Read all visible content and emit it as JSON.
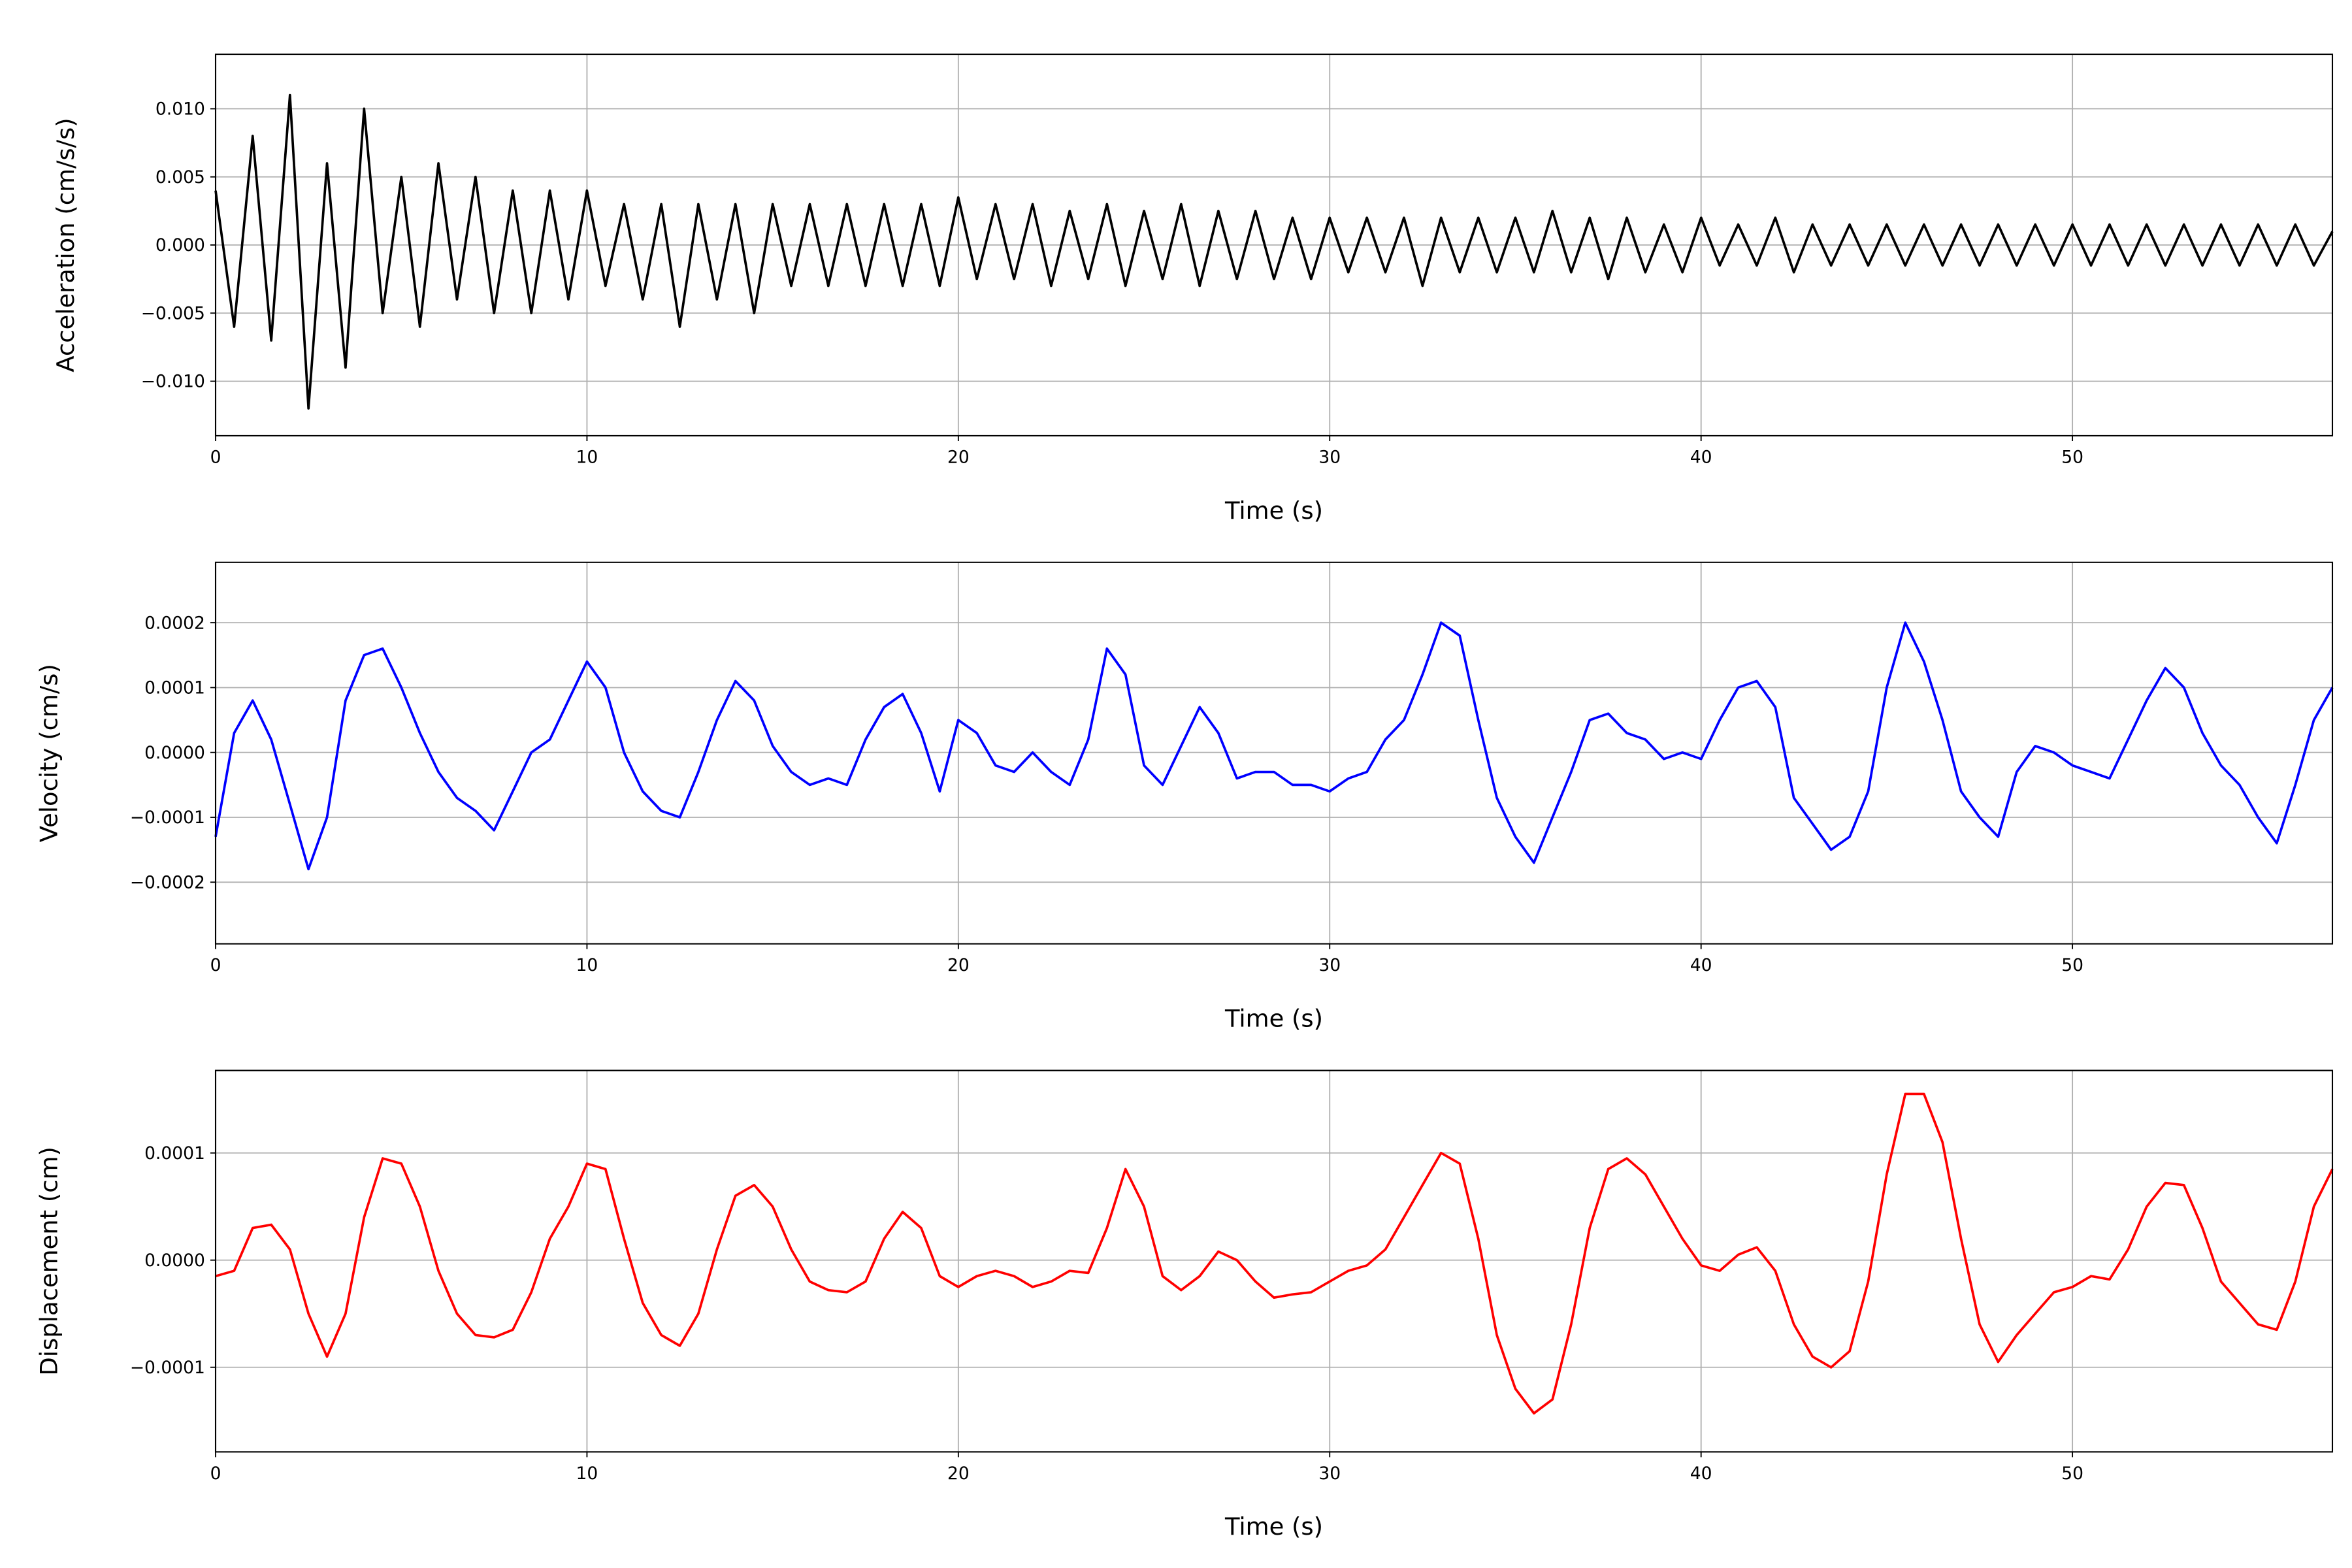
{
  "chart_data": [
    {
      "type": "line",
      "xlabel": "Time (s)",
      "ylabel": "Acceleration (cm/s/s)",
      "color": "#000000",
      "grid": true,
      "xlim": [
        0,
        57
      ],
      "ylim": [
        -0.014,
        0.014
      ],
      "xticks": [
        0,
        10,
        20,
        30,
        40,
        50
      ],
      "yticks": [
        -0.01,
        -0.005,
        0.0,
        0.005,
        0.01
      ],
      "ytick_labels": [
        "−0.010",
        "−0.005",
        "0.000",
        "0.005",
        "0.010"
      ],
      "x_start": 0,
      "x_step": 0.5,
      "y": [
        0.004,
        -0.006,
        0.008,
        -0.007,
        0.011,
        -0.012,
        0.006,
        -0.009,
        0.01,
        -0.005,
        0.005,
        -0.006,
        0.006,
        -0.004,
        0.005,
        -0.005,
        0.004,
        -0.005,
        0.004,
        -0.004,
        0.004,
        -0.003,
        0.003,
        -0.004,
        0.003,
        -0.006,
        0.003,
        -0.004,
        0.003,
        -0.005,
        0.003,
        -0.003,
        0.003,
        -0.003,
        0.003,
        -0.003,
        0.003,
        -0.003,
        0.003,
        -0.003,
        0.0035,
        -0.0025,
        0.003,
        -0.0025,
        0.003,
        -0.003,
        0.0025,
        -0.0025,
        0.003,
        -0.003,
        0.0025,
        -0.0025,
        0.003,
        -0.003,
        0.0025,
        -0.0025,
        0.0025,
        -0.0025,
        0.002,
        -0.0025,
        0.002,
        -0.002,
        0.002,
        -0.002,
        0.002,
        -0.003,
        0.002,
        -0.002,
        0.002,
        -0.002,
        0.002,
        -0.002,
        0.0025,
        -0.002,
        0.002,
        -0.0025,
        0.002,
        -0.002,
        0.0015,
        -0.002,
        0.002,
        -0.0015,
        0.0015,
        -0.0015,
        0.002,
        -0.002,
        0.0015,
        -0.0015,
        0.0015,
        -0.0015,
        0.0015,
        -0.0015,
        0.0015,
        -0.0015,
        0.0015,
        -0.0015,
        0.0015,
        -0.0015,
        0.0015,
        -0.0015,
        0.0015,
        -0.0015,
        0.0015,
        -0.0015,
        0.0015,
        -0.0015,
        0.0015,
        -0.0015,
        0.0015,
        -0.0015,
        0.0015,
        -0.0015,
        0.0015,
        -0.0015,
        0.001
      ]
    },
    {
      "type": "line",
      "xlabel": "Time (s)",
      "ylabel": "Velocity (cm/s)",
      "color": "#0000ff",
      "grid": true,
      "xlim": [
        0,
        57
      ],
      "ylim": [
        -0.000295,
        0.000293
      ],
      "xticks": [
        0,
        10,
        20,
        30,
        40,
        50
      ],
      "yticks": [
        -0.0002,
        -0.0001,
        0.0,
        0.0001,
        0.0002
      ],
      "ytick_labels": [
        "−0.0002",
        "−0.0001",
        "0.0000",
        "0.0001",
        "0.0002"
      ],
      "x_start": 0,
      "x_step": 0.5,
      "y": [
        -0.00013,
        3e-05,
        8e-05,
        2e-05,
        -8e-05,
        -0.00018,
        -0.0001,
        8e-05,
        0.00015,
        0.00016,
        0.0001,
        3e-05,
        -3e-05,
        -7e-05,
        -9e-05,
        -0.00012,
        -6e-05,
        0,
        2e-05,
        8e-05,
        0.00014,
        0.0001,
        0,
        -6e-05,
        -9e-05,
        -0.0001,
        -3e-05,
        5e-05,
        0.00011,
        8e-05,
        1e-05,
        -3e-05,
        -5e-05,
        -4e-05,
        -5e-05,
        2e-05,
        7e-05,
        9e-05,
        3e-05,
        -6e-05,
        5e-05,
        3e-05,
        -2e-05,
        -3e-05,
        0,
        -3e-05,
        -5e-05,
        2e-05,
        0.00016,
        0.00012,
        -2e-05,
        -5e-05,
        1e-05,
        7e-05,
        3e-05,
        -4e-05,
        -3e-05,
        -3e-05,
        -5e-05,
        -5e-05,
        -6e-05,
        -4e-05,
        -3e-05,
        2e-05,
        5e-05,
        0.00012,
        0.0002,
        0.00018,
        5e-05,
        -7e-05,
        -0.00013,
        -0.00017,
        -0.0001,
        -3e-05,
        5e-05,
        6e-05,
        3e-05,
        2e-05,
        -1e-05,
        0,
        -1e-05,
        5e-05,
        0.0001,
        0.00011,
        7e-05,
        -7e-05,
        -0.00011,
        -0.00015,
        -0.00013,
        -6e-05,
        0.0001,
        0.0002,
        0.00014,
        5e-05,
        -6e-05,
        -0.0001,
        -0.00013,
        -3e-05,
        1e-05,
        0,
        -2e-05,
        -3e-05,
        -4e-05,
        2e-05,
        8e-05,
        0.00013,
        0.0001,
        3e-05,
        -2e-05,
        -5e-05,
        -0.0001,
        -0.00014,
        -5e-05,
        5e-05,
        0.0001
      ]
    },
    {
      "type": "line",
      "xlabel": "Time (s)",
      "ylabel": "Displacement (cm)",
      "color": "#ff0000",
      "grid": true,
      "xlim": [
        0,
        57
      ],
      "ylim": [
        -0.000179,
        0.000177
      ],
      "xticks": [
        0,
        10,
        20,
        30,
        40,
        50
      ],
      "yticks": [
        -0.0001,
        0.0,
        0.0001
      ],
      "ytick_labels": [
        "−0.0001",
        "0.0000",
        "0.0001"
      ],
      "x_start": 0,
      "x_step": 0.5,
      "y": [
        -1.5e-05,
        -1e-05,
        3e-05,
        3.3e-05,
        1e-05,
        -5e-05,
        -9e-05,
        -5e-05,
        4e-05,
        9.5e-05,
        9e-05,
        5e-05,
        -1e-05,
        -5e-05,
        -7e-05,
        -7.2e-05,
        -6.5e-05,
        -3e-05,
        2e-05,
        5e-05,
        9e-05,
        8.5e-05,
        2e-05,
        -4e-05,
        -7e-05,
        -8e-05,
        -5e-05,
        1e-05,
        6e-05,
        7e-05,
        5e-05,
        1e-05,
        -2e-05,
        -2.8e-05,
        -3e-05,
        -2e-05,
        2e-05,
        4.5e-05,
        3e-05,
        -1.5e-05,
        -2.5e-05,
        -1.5e-05,
        -1e-05,
        -1.5e-05,
        -2.5e-05,
        -2e-05,
        -1e-05,
        -1.2e-05,
        3e-05,
        8.5e-05,
        5e-05,
        -1.5e-05,
        -2.8e-05,
        -1.5e-05,
        8e-06,
        0,
        -2e-05,
        -3.5e-05,
        -3.2e-05,
        -3e-05,
        -2e-05,
        -1e-05,
        -5e-06,
        1e-05,
        4e-05,
        7e-05,
        0.0001,
        9e-05,
        2e-05,
        -7e-05,
        -0.00012,
        -0.000143,
        -0.00013,
        -6e-05,
        3e-05,
        8.5e-05,
        9.5e-05,
        8e-05,
        5e-05,
        2e-05,
        -5e-06,
        -1e-05,
        5e-06,
        1.2e-05,
        -1e-05,
        -6e-05,
        -9e-05,
        -0.0001,
        -8.5e-05,
        -2e-05,
        8e-05,
        0.000155,
        0.000155,
        0.00011,
        2e-05,
        -6e-05,
        -9.5e-05,
        -7e-05,
        -5e-05,
        -3e-05,
        -2.5e-05,
        -1.5e-05,
        -1.8e-05,
        1e-05,
        5e-05,
        7.2e-05,
        7e-05,
        3e-05,
        -2e-05,
        -4e-05,
        -6e-05,
        -6.5e-05,
        -2e-05,
        5e-05,
        8.5e-05
      ]
    }
  ]
}
